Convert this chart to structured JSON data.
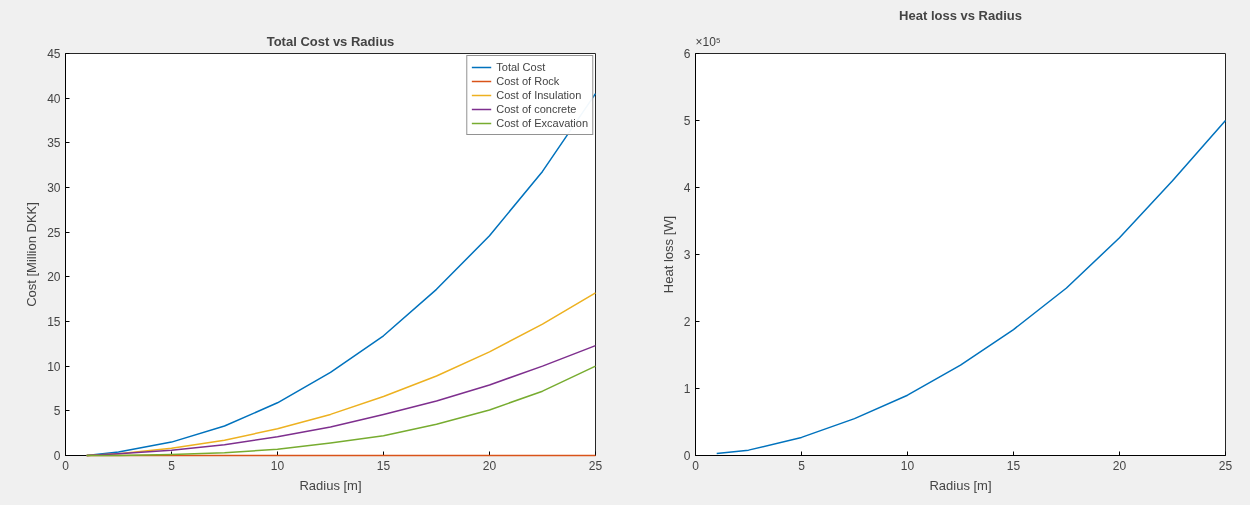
{
  "chart_data": [
    {
      "type": "line",
      "title": "Total Cost vs Radius",
      "xlabel": "Radius [m]",
      "ylabel": "Cost [Million DKK]",
      "x": [
        1,
        2.5,
        5,
        7.5,
        10,
        12.5,
        15,
        17.5,
        20,
        22.5,
        25
      ],
      "series": [
        {
          "name": "Total Cost",
          "color": "#0072bd",
          "values": [
            0,
            0.4,
            1.5,
            3.3,
            5.9,
            9.3,
            13.4,
            18.6,
            24.6,
            31.8,
            40.5
          ]
        },
        {
          "name": "Cost of Rock",
          "color": "#d95319",
          "values": [
            0,
            0,
            0,
            0,
            0,
            0,
            0,
            0,
            0,
            0,
            0
          ]
        },
        {
          "name": "Cost of Insulation",
          "color": "#edb120",
          "values": [
            0,
            0.2,
            0.8,
            1.7,
            3.0,
            4.6,
            6.6,
            8.9,
            11.6,
            14.7,
            18.2
          ]
        },
        {
          "name": "Cost of concrete",
          "color": "#7e2f8e",
          "values": [
            0,
            0.2,
            0.6,
            1.2,
            2.1,
            3.2,
            4.6,
            6.1,
            7.9,
            10.0,
            12.3
          ]
        },
        {
          "name": "Cost of Excavation",
          "color": "#77ac30",
          "values": [
            0,
            0,
            0.1,
            0.3,
            0.7,
            1.4,
            2.2,
            3.5,
            5.1,
            7.2,
            10.0
          ]
        }
      ],
      "xlim": [
        0,
        25
      ],
      "xticks": [
        0,
        5,
        10,
        15,
        20,
        25
      ],
      "ylim": [
        0,
        45
      ],
      "yticks": [
        0,
        5,
        10,
        15,
        20,
        25,
        30,
        35,
        40,
        45
      ],
      "grid": false,
      "legend": "top right",
      "marker": "none",
      "line_style": "solid"
    },
    {
      "type": "line",
      "title": "Heat loss vs Radius",
      "xlabel": "Radius [m]",
      "ylabel": "Heat loss [W]",
      "annotations": [
        "×10⁵"
      ],
      "x": [
        1,
        2.5,
        5,
        7.5,
        10,
        12.5,
        15,
        17.5,
        20,
        22.5,
        25
      ],
      "series": [
        {
          "color": "#0072bd",
          "values": [
            0.03,
            0.08,
            0.27,
            0.55,
            0.9,
            1.35,
            1.88,
            2.5,
            3.25,
            4.1,
            5.0
          ]
        }
      ],
      "xlim": [
        0,
        25
      ],
      "xticks": [
        0,
        5,
        10,
        15,
        20,
        25
      ],
      "ylim": [
        0,
        6
      ],
      "yticks": [
        0,
        1,
        2,
        3,
        4,
        5,
        6
      ],
      "grid": false,
      "legend": false,
      "marker": "none",
      "line_style": "solid"
    }
  ]
}
